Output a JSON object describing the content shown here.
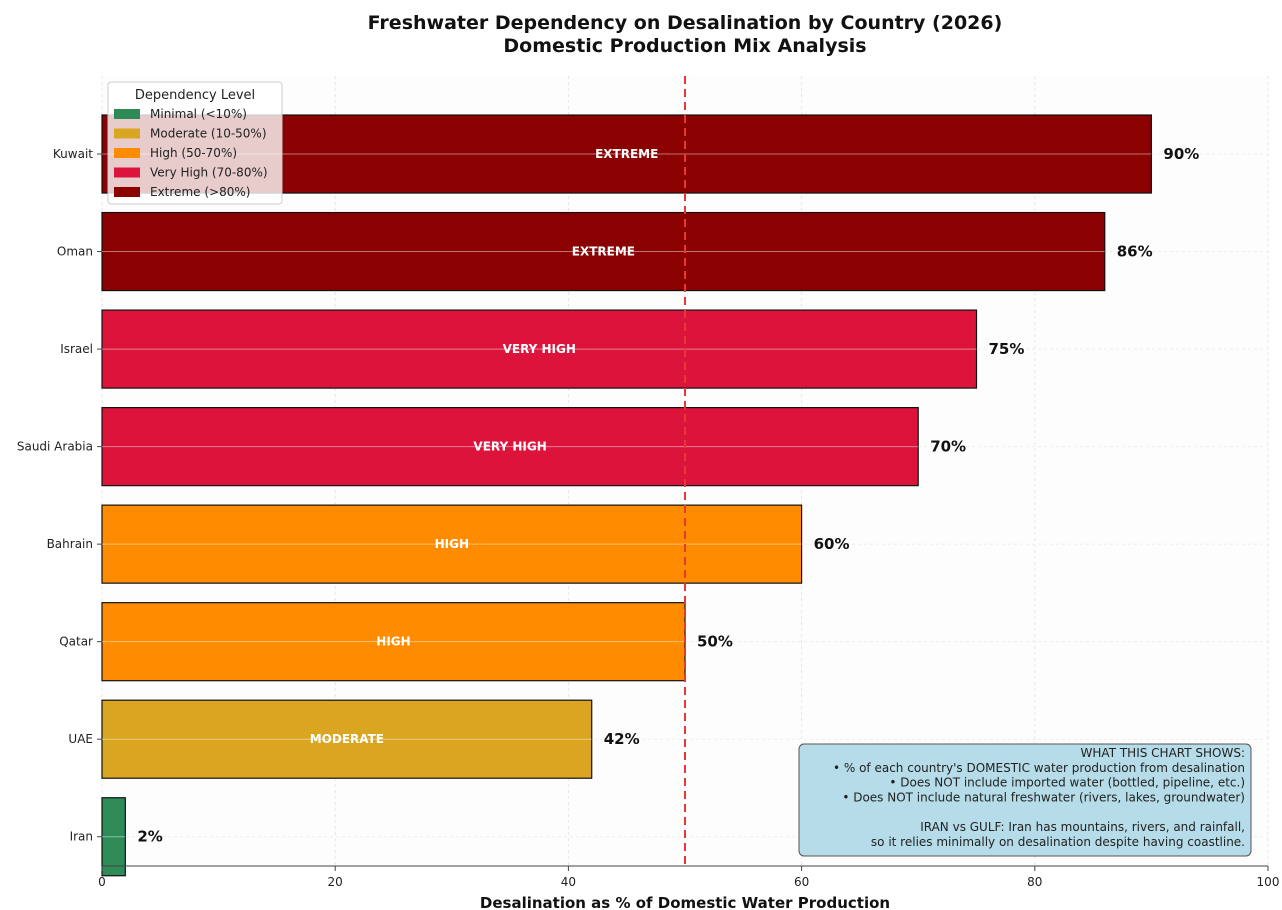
{
  "chart_data": {
    "type": "bar",
    "orientation": "horizontal",
    "title": [
      "Freshwater Dependency on Desalination by Country (2026)",
      "Domestic Production Mix Analysis"
    ],
    "xlabel": "Desalination as % of Domestic Water Production",
    "ylabel": "",
    "xlim": [
      0,
      100
    ],
    "x_ticks": [
      0,
      20,
      40,
      60,
      80,
      100
    ],
    "grid": true,
    "reference_line": {
      "value": 50,
      "style": "dashed",
      "color": "#e53935"
    },
    "categories": [
      "Kuwait",
      "Oman",
      "Israel",
      "Saudi Arabia",
      "Bahrain",
      "Qatar",
      "UAE",
      "Iran"
    ],
    "values": [
      90,
      86,
      75,
      70,
      60,
      50,
      42,
      2
    ],
    "value_labels": [
      "90%",
      "86%",
      "75%",
      "70%",
      "60%",
      "50%",
      "42%",
      "2%"
    ],
    "bar_labels": [
      "EXTREME",
      "EXTREME",
      "VERY HIGH",
      "VERY HIGH",
      "HIGH",
      "HIGH",
      "MODERATE",
      ""
    ],
    "bar_levels": [
      "extreme",
      "extreme",
      "very_high",
      "very_high",
      "high",
      "high",
      "moderate",
      "minimal"
    ],
    "legend": {
      "title": "Dependency Level",
      "position": "top-left",
      "items": [
        {
          "key": "minimal",
          "label": "Minimal (<10%)",
          "color": "#2e8b57"
        },
        {
          "key": "moderate",
          "label": "Moderate (10-50%)",
          "color": "#daa520"
        },
        {
          "key": "high",
          "label": "High (50-70%)",
          "color": "#ff8c00"
        },
        {
          "key": "very_high",
          "label": "Very High (70-80%)",
          "color": "#dc143c"
        },
        {
          "key": "extreme",
          "label": "Extreme (>80%)",
          "color": "#8b0000"
        }
      ]
    },
    "annotation": {
      "position": "bottom-right",
      "lines": [
        "WHAT THIS CHART SHOWS:",
        "• % of each country's DOMESTIC water production from desalination",
        "• Does NOT include imported water (bottled, pipeline, etc.)",
        "• Does NOT include natural freshwater (rivers, lakes, groundwater)",
        "",
        "IRAN vs GULF: Iran has mountains, rivers, and rainfall,",
        "so it relies minimally on desalination despite having coastline."
      ]
    }
  }
}
